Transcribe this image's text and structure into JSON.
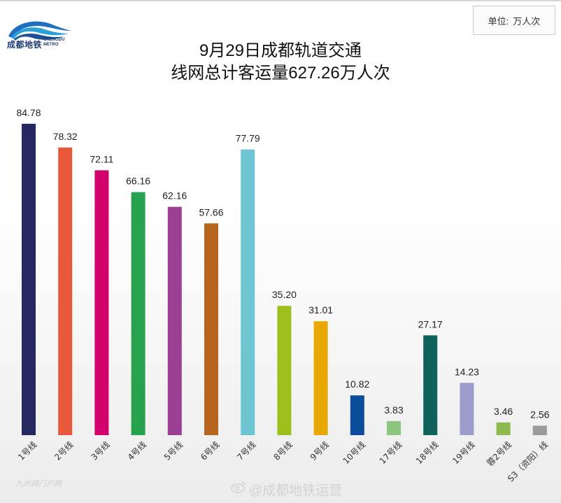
{
  "header": {
    "logo_cn": "成都地铁",
    "logo_en_1": "CHENGDU",
    "logo_en_2": "METRO",
    "unit_label": "单位:",
    "unit_value": "万人次",
    "title_line1": "9月29日成都轨道交通",
    "title_line2": "线网总计客运量627.26万人次"
  },
  "watermarks": {
    "left": "九州网门户网",
    "right": "@成都地铁运营"
  },
  "chart_data": {
    "type": "bar",
    "title": "9月29日成都轨道交通线网总计客运量627.26万人次",
    "unit": "万人次",
    "ylim": [
      0,
      90
    ],
    "grid": false,
    "categories": [
      "1号线",
      "2号线",
      "3号线",
      "4号线",
      "5号线",
      "6号线",
      "7号线",
      "8号线",
      "9号线",
      "10号线",
      "17号线",
      "18号线",
      "19号线",
      "蓉2号线",
      "S3（资阳）线"
    ],
    "values": [
      84.78,
      78.32,
      72.11,
      66.16,
      62.16,
      57.66,
      77.79,
      35.2,
      31.01,
      10.82,
      3.83,
      27.17,
      14.23,
      3.46,
      2.56
    ],
    "labels": [
      "84.78",
      "78.32",
      "72.11",
      "66.16",
      "62.16",
      "57.66",
      "77.79",
      "35.20",
      "31.01",
      "10.82",
      "3.83",
      "27.17",
      "14.23",
      "3.46",
      "2.56"
    ],
    "colors": [
      "#262862",
      "#e8583a",
      "#d1006b",
      "#27a350",
      "#9a3f91",
      "#b5651d",
      "#6ec6d3",
      "#9dc01c",
      "#e8a800",
      "#0a4c9c",
      "#8cc57e",
      "#0f615c",
      "#9e9ccd",
      "#8cba4f",
      "#9a9a9a"
    ]
  }
}
